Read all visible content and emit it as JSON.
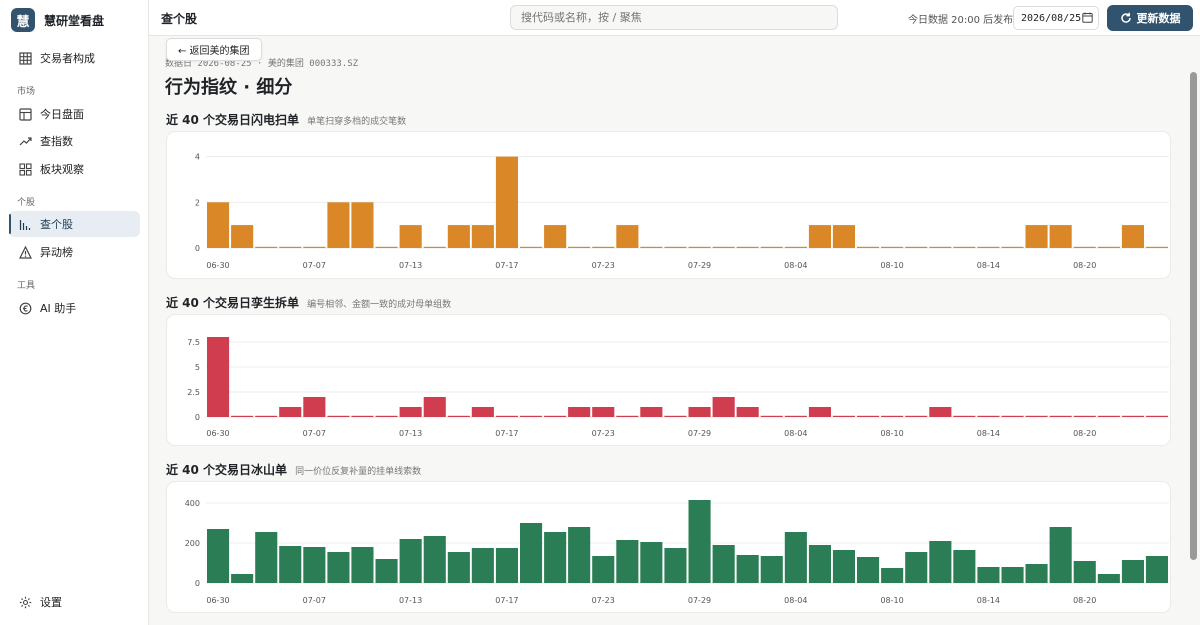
{
  "sidebar": {
    "logo_char": "慧",
    "brand": "慧研堂看盘",
    "items": [
      {
        "label": "交易者构成",
        "icon": "grid-icon"
      },
      {
        "section": "市场"
      },
      {
        "label": "今日盘面",
        "icon": "layout-icon"
      },
      {
        "label": "查指数",
        "icon": "trend-icon"
      },
      {
        "label": "板块观察",
        "icon": "blocks-icon"
      },
      {
        "section": "个股"
      },
      {
        "label": "查个股",
        "icon": "bar-icon",
        "active": true
      },
      {
        "label": "异动榜",
        "icon": "alert-icon"
      },
      {
        "section": "工具"
      },
      {
        "label": "AI 助手",
        "icon": "ai-icon"
      }
    ],
    "settings": "设置"
  },
  "topbar": {
    "title": "查个股",
    "search_placeholder": "搜代码或名称，按 / 聚焦",
    "publish_note": "今日数据 20:00 后发布",
    "date": "2026/08/25",
    "refresh_label": "更新数据"
  },
  "page": {
    "breadcrumb": "数据日 2026-08-25 · 美的集团 000333.SZ",
    "back_label": "← 返回美的集团",
    "title": "行为指纹 · 细分"
  },
  "sections": [
    {
      "title": "近 40 个交易日闪电扫单",
      "subtitle": "单笔扫穿多档的成交笔数"
    },
    {
      "title": "近 40 个交易日孪生拆单",
      "subtitle": "编号相邻、金额一致的成对母单组数"
    },
    {
      "title": "近 40 个交易日冰山单",
      "subtitle": "同一价位反复补量的挂单线索数"
    }
  ],
  "chart_data": [
    {
      "type": "bar",
      "color": "#d98727",
      "ylim": [
        0,
        4.2
      ],
      "yticks": [
        "0",
        "2",
        "4"
      ],
      "ytick_values": [
        0,
        2,
        4
      ],
      "xtick_labels": [
        "06-30",
        "07-07",
        "07-13",
        "07-17",
        "07-23",
        "07-29",
        "08-04",
        "08-10",
        "08-14",
        "08-20"
      ],
      "xtick_index": [
        0,
        4,
        8,
        12,
        16,
        20,
        24,
        28,
        32,
        36
      ],
      "values": [
        2,
        1,
        0,
        0,
        0,
        2,
        2,
        0,
        1,
        0,
        1,
        1,
        4,
        0,
        1,
        0,
        0,
        1,
        0,
        0,
        0,
        0,
        0,
        0,
        0,
        1,
        1,
        0,
        0,
        0,
        0,
        0,
        0,
        0,
        1,
        1,
        0,
        0,
        1,
        0
      ]
    },
    {
      "type": "bar",
      "color": "#cf3d4f",
      "ylim": [
        0,
        8.2
      ],
      "yticks": [
        "0",
        "2.5",
        "5",
        "7.5"
      ],
      "ytick_values": [
        0,
        2.5,
        5,
        7.5
      ],
      "xtick_labels": [
        "06-30",
        "07-07",
        "07-13",
        "07-17",
        "07-23",
        "07-29",
        "08-04",
        "08-10",
        "08-14",
        "08-20"
      ],
      "xtick_index": [
        0,
        4,
        8,
        12,
        16,
        20,
        24,
        28,
        32,
        36
      ],
      "values": [
        8,
        0,
        0,
        1,
        2,
        0,
        0,
        0,
        1,
        2,
        0,
        1,
        0,
        0,
        0,
        1,
        1,
        0,
        1,
        0,
        1,
        2,
        1,
        0,
        0,
        1,
        0,
        0,
        0,
        0,
        1,
        0,
        0,
        0,
        0,
        0,
        0,
        0,
        0,
        0
      ]
    },
    {
      "type": "bar",
      "color": "#2b7d56",
      "ylim": [
        0,
        430
      ],
      "yticks": [
        "0",
        "200",
        "400"
      ],
      "ytick_values": [
        0,
        200,
        400
      ],
      "xtick_labels": [
        "06-30",
        "07-07",
        "07-13",
        "07-17",
        "07-23",
        "07-29",
        "08-04",
        "08-10",
        "08-14",
        "08-20"
      ],
      "xtick_index": [
        0,
        4,
        8,
        12,
        16,
        20,
        24,
        28,
        32,
        36
      ],
      "values": [
        270,
        45,
        255,
        185,
        180,
        155,
        180,
        120,
        220,
        235,
        155,
        175,
        175,
        300,
        255,
        280,
        135,
        215,
        205,
        175,
        415,
        190,
        140,
        135,
        255,
        190,
        165,
        130,
        75,
        155,
        210,
        165,
        80,
        80,
        95,
        280,
        110,
        45,
        115,
        135
      ]
    }
  ]
}
